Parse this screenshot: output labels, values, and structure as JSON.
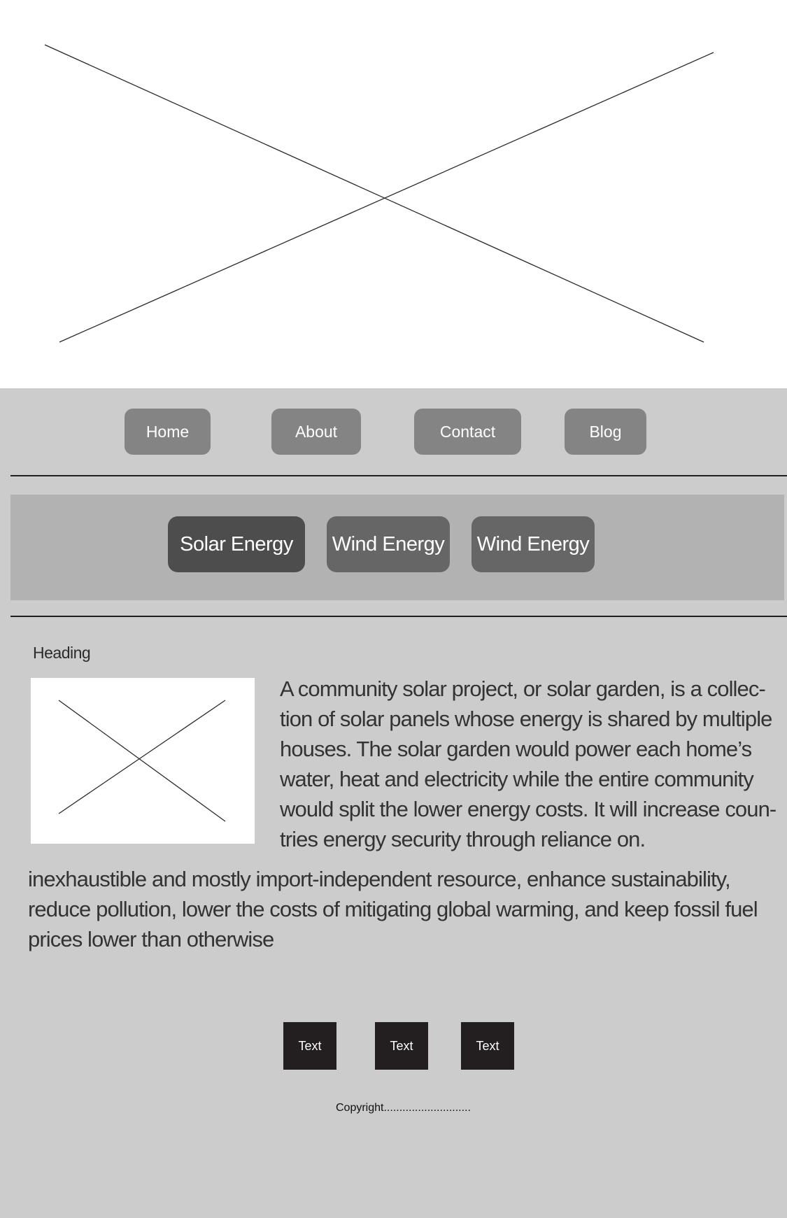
{
  "hero": {
    "image_icon": "image-placeholder-icon"
  },
  "nav": {
    "items": [
      {
        "label": "Home"
      },
      {
        "label": "About"
      },
      {
        "label": "Contact"
      },
      {
        "label": "Blog"
      }
    ]
  },
  "tabs": [
    {
      "label": "Solar Energy",
      "active": true
    },
    {
      "label": "Wind Energy",
      "active": false
    },
    {
      "label": "Wind Energy",
      "active": false
    }
  ],
  "content": {
    "heading": "Heading",
    "image_icon": "image-placeholder-icon",
    "paragraph_lines_side": [
      "A community solar project, or solar garden, is a collec-",
      "tion of solar panels whose energy is shared by multiple",
      "houses. The solar garden would power each home’s",
      "water, heat and electricity while the entire community",
      "would split the lower energy costs. It will increase coun-",
      "tries energy security through reliance on."
    ],
    "paragraph_lines_full": [
      "inexhaustible and mostly import-independent resource, enhance sustainability,",
      "reduce pollution, lower the costs of mitigating global warming, and keep fossil fuel",
      "prices lower than otherwise"
    ]
  },
  "footer": {
    "buttons": [
      {
        "label": "Text"
      },
      {
        "label": "Text"
      },
      {
        "label": "Text"
      }
    ],
    "copyright": "Copyright............................"
  },
  "colors": {
    "page_bg": "#cccccc",
    "hero_bg": "#ffffff",
    "nav_button": "#848484",
    "tab_band": "#b2b2b2",
    "tab_active": "#4d4d4d",
    "tab_inactive": "#666666",
    "footer_button": "#231f20"
  }
}
